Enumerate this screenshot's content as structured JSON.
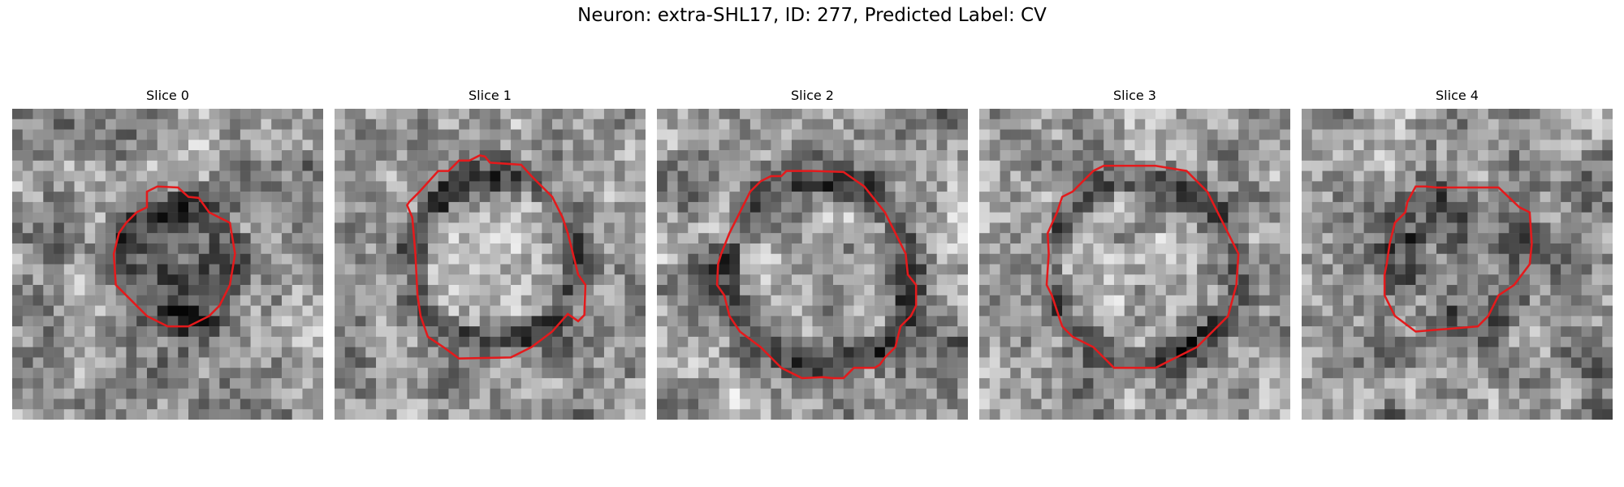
{
  "figure": {
    "title": "Neuron: extra-SHL17, ID: 277, Predicted Label: CV"
  },
  "panels": [
    {
      "title": "Slice 0",
      "contour_color": "#e41a1c",
      "colormap": "grayscale"
    },
    {
      "title": "Slice 1",
      "contour_color": "#e41a1c",
      "colormap": "grayscale"
    },
    {
      "title": "Slice 2",
      "contour_color": "#e41a1c",
      "colormap": "grayscale"
    },
    {
      "title": "Slice 3",
      "contour_color": "#e41a1c",
      "colormap": "grayscale"
    },
    {
      "title": "Slice 4",
      "contour_color": "#e41a1c",
      "colormap": "grayscale"
    }
  ]
}
